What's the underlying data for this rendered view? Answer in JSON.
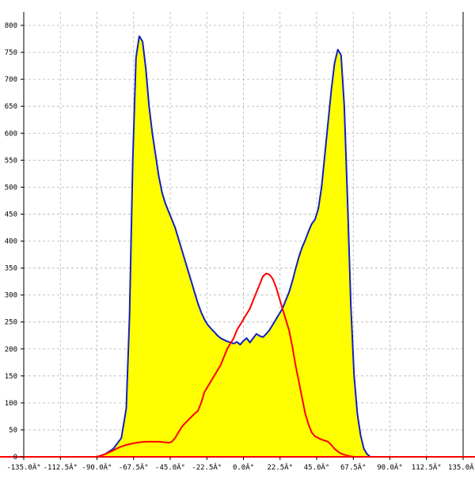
{
  "chart_data": {
    "type": "area",
    "title": "",
    "xlabel": "",
    "ylabel": "",
    "xlim": [
      -135,
      135
    ],
    "ylim": [
      0,
      825
    ],
    "grid": true,
    "x_ticks": [
      -135,
      -112.5,
      -90,
      -67.5,
      -45,
      -22.5,
      0,
      22.5,
      45,
      67.5,
      90,
      112.5,
      135
    ],
    "x_tick_labels": [
      "-135.0Â°",
      "-112.5Â°",
      "-90.0Â°",
      "-67.5Â°",
      "-45.0Â°",
      "-22.5Â°",
      "0.0Â°",
      "22.5Â°",
      "45.0Â°",
      "67.5Â°",
      "90.0Â°",
      "112.5Â°",
      "135.0Â°"
    ],
    "y_ticks": [
      0,
      50,
      100,
      150,
      200,
      250,
      300,
      350,
      400,
      450,
      500,
      550,
      600,
      650,
      700,
      750,
      800
    ],
    "y_tick_labels": [
      "0",
      "50",
      "100",
      "150",
      "200",
      "250",
      "300",
      "350",
      "400",
      "450",
      "500",
      "550",
      "600",
      "650",
      "700",
      "750",
      "800"
    ],
    "series": [
      {
        "color": "#1020c0",
        "fill": "#ffff00",
        "x": [
          -90,
          -85,
          -80,
          -75,
          -72,
          -70,
          -68,
          -66,
          -64,
          -62,
          -60,
          -58,
          -56,
          -54,
          -52,
          -50,
          -48,
          -46,
          -44,
          -42,
          -40,
          -38,
          -36,
          -34,
          -32,
          -30,
          -28,
          -26,
          -24,
          -22,
          -20,
          -18,
          -16,
          -14,
          -12,
          -10,
          -8,
          -6,
          -4,
          -2,
          0,
          2,
          4,
          6,
          8,
          10,
          12,
          14,
          16,
          18,
          20,
          22,
          24,
          26,
          28,
          30,
          32,
          34,
          36,
          38,
          40,
          42,
          44,
          46,
          48,
          50,
          52,
          54,
          56,
          58,
          60,
          62,
          64,
          66,
          68,
          70,
          72,
          74,
          76,
          78,
          80,
          82,
          84,
          86,
          88,
          90,
          95
        ],
        "y": [
          0,
          5,
          15,
          35,
          90,
          260,
          550,
          740,
          780,
          770,
          720,
          650,
          600,
          560,
          520,
          490,
          470,
          455,
          440,
          425,
          405,
          385,
          365,
          345,
          325,
          305,
          285,
          268,
          255,
          245,
          238,
          232,
          225,
          220,
          217,
          214,
          212,
          210,
          213,
          208,
          215,
          220,
          212,
          220,
          228,
          224,
          222,
          228,
          235,
          245,
          255,
          265,
          275,
          290,
          305,
          325,
          348,
          370,
          388,
          402,
          418,
          432,
          440,
          460,
          500,
          560,
          620,
          680,
          730,
          755,
          745,
          650,
          470,
          280,
          150,
          80,
          40,
          15,
          5,
          0,
          0,
          0,
          0,
          0,
          0,
          0,
          0
        ]
      },
      {
        "color": "#ff0000",
        "x": [
          -90,
          -85,
          -80,
          -76,
          -72,
          -68,
          -64,
          -60,
          -56,
          -52,
          -48,
          -46,
          -44,
          -42,
          -40,
          -38,
          -36,
          -34,
          -32,
          -30,
          -28,
          -26,
          -24,
          -22,
          -20,
          -18,
          -16,
          -14,
          -12,
          -10,
          -8,
          -6,
          -4,
          -2,
          0,
          2,
          4,
          6,
          8,
          10,
          12,
          14,
          16,
          18,
          20,
          22,
          24,
          26,
          28,
          30,
          32,
          34,
          36,
          38,
          40,
          42,
          44,
          46,
          48,
          50,
          52,
          54,
          56,
          58,
          60,
          62,
          64,
          66,
          68,
          70,
          72,
          74,
          76,
          78,
          80,
          82,
          84,
          86,
          88,
          90
        ],
        "y": [
          0,
          5,
          12,
          18,
          22,
          25,
          27,
          28,
          28,
          28,
          27,
          26,
          28,
          35,
          45,
          55,
          62,
          68,
          74,
          80,
          85,
          100,
          120,
          130,
          140,
          150,
          160,
          170,
          185,
          200,
          210,
          220,
          235,
          245,
          255,
          265,
          275,
          290,
          305,
          320,
          335,
          340,
          338,
          330,
          315,
          295,
          275,
          255,
          235,
          205,
          170,
          140,
          110,
          80,
          60,
          45,
          38,
          35,
          32,
          30,
          28,
          22,
          15,
          10,
          6,
          4,
          2,
          1,
          0,
          0,
          0,
          0,
          0,
          0,
          0,
          0,
          0,
          0,
          0,
          0
        ]
      }
    ]
  }
}
